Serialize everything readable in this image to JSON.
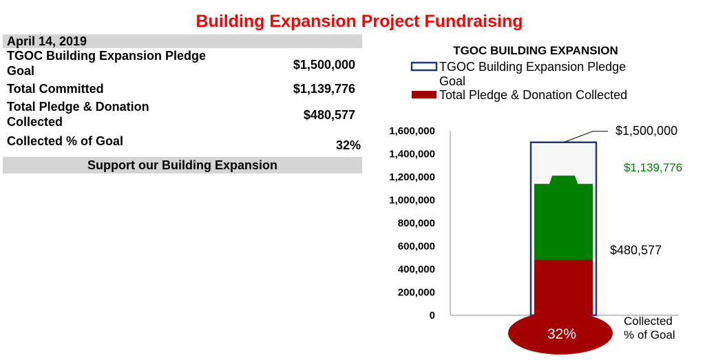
{
  "title": "Building Expansion Project Fundraising",
  "table": {
    "date": "April 14, 2019",
    "rows": [
      {
        "label_line1": "TGOC Building Expansion  Pledge",
        "label_line2": "Goal",
        "value": "$1,500,000"
      },
      {
        "label_line1": "Total Committed",
        "label_line2": "",
        "value": "$1,139,776"
      },
      {
        "label_line1": "Total Pledge & Donation",
        "label_line2": "Collected",
        "value": "$480,577"
      },
      {
        "label_line1": "Collected % of Goal",
        "label_line2": "",
        "value": "32%"
      }
    ],
    "footer": "Support our Building Expansion"
  },
  "colors": {
    "title": "#ff0000",
    "goal_outline": "#1f3a7a",
    "committed": "#008000",
    "collected": "#a50000",
    "band": "#d4d4d4"
  },
  "chart_data": {
    "type": "bar",
    "title": "TGOC BUILDING EXPANSION",
    "ylim": [
      0,
      1600000
    ],
    "yticks": [
      "0",
      "200,000",
      "400,000",
      "600,000",
      "800,000",
      "1,000,000",
      "1,200,000",
      "1,400,000",
      "1,600,000"
    ],
    "ytick_values": [
      0,
      200000,
      400000,
      600000,
      800000,
      1000000,
      1200000,
      1400000,
      1600000
    ],
    "series": [
      {
        "name": "TGOC Building Expansion  Pledge Goal",
        "legend_line1": "TGOC Building Expansion  Pledge",
        "legend_line2": "Goal",
        "value": 1500000,
        "label": "$1,500,000"
      },
      {
        "name": "Total Pledge & Donation Collected",
        "value": 480577,
        "label": "$480,577"
      }
    ],
    "committed": {
      "value": 1139776,
      "label": "$1,139,776"
    },
    "percent_label": "32%",
    "bulb_label_line1": "Collected",
    "bulb_label_line2": "% of Goal",
    "legend_placement": "top"
  }
}
